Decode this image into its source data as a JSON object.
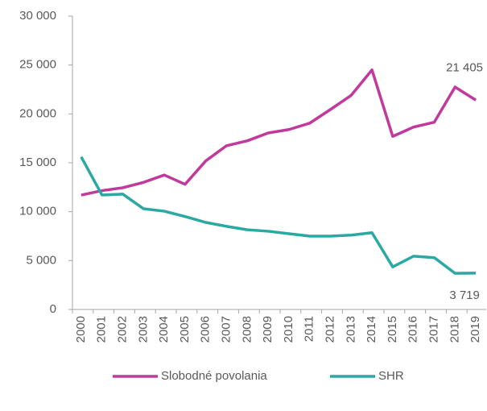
{
  "chart_data": {
    "type": "line",
    "categories": [
      "2000",
      "2001",
      "2002",
      "2003",
      "2004",
      "2005",
      "2006",
      "2007",
      "2008",
      "2009",
      "2010",
      "2011",
      "2012",
      "2013",
      "2014",
      "2015",
      "2016",
      "2017",
      "2018",
      "2019"
    ],
    "series": [
      {
        "name": "Slobodné povolania",
        "color": "#c0399b",
        "values": [
          11700,
          12150,
          12450,
          13000,
          13750,
          12800,
          15200,
          16750,
          17250,
          18050,
          18400,
          19050,
          20450,
          21900,
          24500,
          17700,
          18650,
          19150,
          22750,
          21405
        ],
        "value_labels": [
          null,
          null,
          null,
          null,
          null,
          null,
          null,
          null,
          null,
          null,
          null,
          null,
          null,
          null,
          null,
          null,
          null,
          null,
          null,
          "21 405"
        ]
      },
      {
        "name": "SHR",
        "color": "#2aa9a3",
        "values": [
          15600,
          11700,
          11800,
          10300,
          10050,
          9500,
          8900,
          8500,
          8150,
          8000,
          7750,
          7500,
          7500,
          7600,
          7850,
          4350,
          5450,
          5300,
          3700,
          3719
        ],
        "value_labels": [
          null,
          null,
          null,
          null,
          null,
          null,
          null,
          null,
          null,
          null,
          null,
          null,
          null,
          null,
          null,
          null,
          null,
          null,
          null,
          "3 719"
        ]
      }
    ],
    "ylim": [
      0,
      30000
    ],
    "yticks": [
      0,
      {
        "value": 5000,
        "label": "5 000"
      },
      {
        "value": 10000,
        "label": "10 000"
      },
      {
        "value": 15000,
        "label": "15 000"
      },
      {
        "value": 20000,
        "label": "20 000"
      },
      {
        "value": 25000,
        "label": "25 000"
      },
      {
        "value": 30000,
        "label": "30 000"
      }
    ],
    "grid": false,
    "legend": "bottom"
  }
}
